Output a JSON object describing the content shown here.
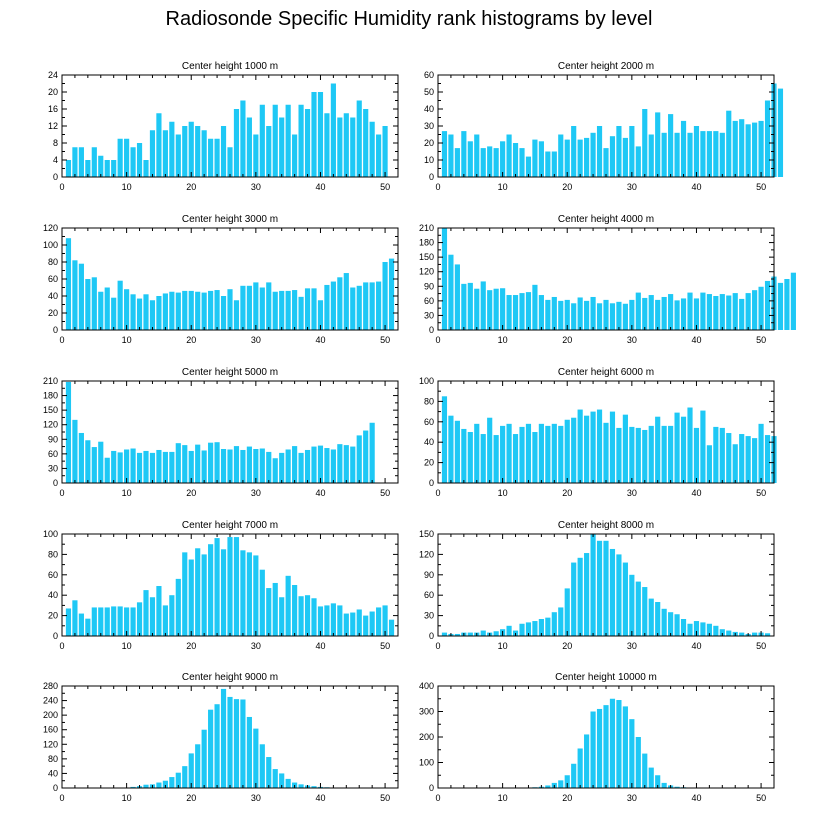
{
  "figure": {
    "title": "Radiosonde Specific Humidity rank histograms by level",
    "bar_color": "#1ec8f5",
    "axis_color": "#000000"
  },
  "chart_data": [
    {
      "type": "bar",
      "title": "Center height 1000 m",
      "xlim": [
        0,
        52
      ],
      "ylim": [
        0,
        24
      ],
      "yticks": [
        0,
        4,
        8,
        12,
        16,
        20,
        24
      ],
      "xticks": [
        0,
        10,
        20,
        30,
        40,
        50
      ],
      "values": [
        4,
        7,
        7,
        4,
        7,
        5,
        4,
        4,
        9,
        9,
        7,
        8,
        4,
        11,
        15,
        11,
        13,
        10,
        12,
        13,
        12,
        11,
        9,
        9,
        12,
        7,
        16,
        18,
        14,
        10,
        17,
        12,
        17,
        14,
        17,
        10,
        17,
        16,
        20,
        20,
        15,
        22,
        14,
        15,
        14,
        18,
        16,
        13,
        10,
        12
      ]
    },
    {
      "type": "bar",
      "title": "Center height 2000 m",
      "xlim": [
        0,
        52
      ],
      "ylim": [
        0,
        60
      ],
      "yticks": [
        0,
        10,
        20,
        30,
        40,
        50,
        60
      ],
      "xticks": [
        0,
        10,
        20,
        30,
        40,
        50
      ],
      "values": [
        27,
        25,
        17,
        27,
        21,
        25,
        17,
        18,
        17,
        21,
        25,
        20,
        17,
        12,
        22,
        21,
        15,
        15,
        25,
        22,
        30,
        22,
        23,
        26,
        30,
        17,
        24,
        30,
        23,
        30,
        18,
        40,
        25,
        38,
        26,
        37,
        26,
        33,
        26,
        30,
        27,
        27,
        27,
        26,
        39,
        33,
        34,
        31,
        32,
        33,
        45,
        55,
        52
      ]
    },
    {
      "type": "bar",
      "title": "Center height 3000 m",
      "xlim": [
        0,
        52
      ],
      "ylim": [
        0,
        120
      ],
      "yticks": [
        0,
        20,
        40,
        60,
        80,
        100,
        120
      ],
      "xticks": [
        0,
        10,
        20,
        30,
        40,
        50
      ],
      "values": [
        108,
        82,
        78,
        60,
        62,
        45,
        50,
        38,
        58,
        48,
        42,
        37,
        42,
        35,
        40,
        43,
        45,
        44,
        46,
        46,
        45,
        44,
        46,
        47,
        40,
        48,
        35,
        52,
        52,
        56,
        50,
        56,
        45,
        46,
        46,
        47,
        39,
        49,
        49,
        35,
        53,
        57,
        62,
        67,
        50,
        52,
        56,
        56,
        57,
        80,
        84
      ]
    },
    {
      "type": "bar",
      "title": "Center height 4000 m",
      "xlim": [
        0,
        52
      ],
      "ylim": [
        0,
        210
      ],
      "yticks": [
        0,
        30,
        60,
        90,
        120,
        150,
        180,
        210
      ],
      "xticks": [
        0,
        10,
        20,
        30,
        40,
        50
      ],
      "values": [
        210,
        155,
        135,
        95,
        97,
        85,
        100,
        82,
        85,
        86,
        72,
        72,
        76,
        78,
        93,
        72,
        62,
        68,
        60,
        62,
        55,
        67,
        60,
        68,
        55,
        62,
        55,
        58,
        54,
        62,
        77,
        66,
        72,
        62,
        68,
        74,
        61,
        65,
        77,
        65,
        77,
        74,
        70,
        74,
        71,
        76,
        64,
        76,
        82,
        89,
        101,
        110,
        97,
        105,
        118
      ]
    },
    {
      "type": "bar",
      "title": "Center height 5000 m",
      "xlim": [
        0,
        52
      ],
      "ylim": [
        0,
        210
      ],
      "yticks": [
        0,
        30,
        60,
        90,
        120,
        150,
        180,
        210
      ],
      "xticks": [
        0,
        10,
        20,
        30,
        40,
        50
      ],
      "values": [
        208,
        130,
        103,
        88,
        74,
        85,
        52,
        66,
        63,
        69,
        71,
        62,
        66,
        62,
        68,
        64,
        64,
        82,
        78,
        66,
        79,
        67,
        83,
        84,
        70,
        69,
        76,
        68,
        75,
        70,
        71,
        64,
        51,
        62,
        69,
        76,
        62,
        68,
        75,
        77,
        72,
        69,
        80,
        78,
        75,
        98,
        108,
        124
      ]
    },
    {
      "type": "bar",
      "title": "Center height 6000 m",
      "xlim": [
        0,
        52
      ],
      "ylim": [
        0,
        100
      ],
      "yticks": [
        0,
        20,
        40,
        60,
        80,
        100
      ],
      "xticks": [
        0,
        10,
        20,
        30,
        40,
        50
      ],
      "values": [
        85,
        66,
        61,
        53,
        50,
        58,
        48,
        64,
        47,
        56,
        58,
        48,
        55,
        58,
        50,
        58,
        56,
        58,
        56,
        62,
        64,
        72,
        66,
        70,
        72,
        59,
        70,
        54,
        67,
        55,
        54,
        52,
        56,
        65,
        56,
        56,
        69,
        65,
        74,
        54,
        71,
        37,
        55,
        54,
        49,
        38,
        48,
        46,
        44,
        58,
        47,
        46
      ]
    },
    {
      "type": "bar",
      "title": "Center height 7000 m",
      "xlim": [
        0,
        52
      ],
      "ylim": [
        0,
        100
      ],
      "yticks": [
        0,
        20,
        40,
        60,
        80,
        100
      ],
      "xticks": [
        0,
        10,
        20,
        30,
        40,
        50
      ],
      "values": [
        27,
        35,
        22,
        17,
        28,
        28,
        28,
        29,
        29,
        28,
        28,
        33,
        45,
        38,
        49,
        30,
        40,
        56,
        82,
        75,
        86,
        80,
        90,
        96,
        85,
        97,
        97,
        84,
        82,
        79,
        65,
        47,
        52,
        38,
        59,
        50,
        39,
        40,
        37,
        29,
        30,
        32,
        30,
        22,
        23,
        26,
        20,
        24,
        28,
        30,
        16
      ]
    },
    {
      "type": "bar",
      "title": "Center height 8000 m",
      "xlim": [
        0,
        52
      ],
      "ylim": [
        0,
        150
      ],
      "yticks": [
        0,
        30,
        60,
        90,
        120,
        150
      ],
      "xticks": [
        0,
        10,
        20,
        30,
        40,
        50
      ],
      "values": [
        5,
        3,
        3,
        5,
        5,
        5,
        8,
        5,
        7,
        10,
        15,
        8,
        18,
        20,
        22,
        25,
        27,
        35,
        42,
        70,
        108,
        115,
        122,
        150,
        140,
        140,
        128,
        120,
        108,
        90,
        80,
        72,
        55,
        50,
        40,
        35,
        32,
        25,
        18,
        22,
        20,
        18,
        15,
        10,
        8,
        6,
        5,
        3,
        5,
        5,
        4
      ]
    },
    {
      "type": "bar",
      "title": "Center height 9000 m",
      "xlim": [
        0,
        52
      ],
      "ylim": [
        0,
        280
      ],
      "yticks": [
        0,
        40,
        80,
        120,
        160,
        200,
        240,
        280
      ],
      "xticks": [
        0,
        10,
        20,
        30,
        40,
        50
      ],
      "values": [
        0,
        0,
        0,
        0,
        0,
        0,
        0,
        0,
        1,
        1,
        3,
        5,
        9,
        10,
        15,
        20,
        30,
        42,
        60,
        95,
        120,
        160,
        215,
        230,
        272,
        250,
        244,
        243,
        195,
        163,
        120,
        85,
        52,
        40,
        25,
        15,
        10,
        7,
        5,
        3,
        2,
        1,
        1,
        0,
        0,
        0,
        0,
        0,
        0,
        0,
        0
      ]
    },
    {
      "type": "bar",
      "title": "Center height 10000 m",
      "xlim": [
        0,
        52
      ],
      "ylim": [
        0,
        400
      ],
      "yticks": [
        0,
        100,
        200,
        300,
        400
      ],
      "xticks": [
        0,
        10,
        20,
        30,
        40,
        50
      ],
      "values": [
        0,
        0,
        0,
        0,
        0,
        0,
        0,
        0,
        0,
        0,
        0,
        0,
        1,
        1,
        3,
        5,
        10,
        20,
        30,
        50,
        95,
        155,
        210,
        300,
        310,
        325,
        350,
        345,
        320,
        270,
        200,
        135,
        80,
        50,
        20,
        10,
        5,
        3,
        1,
        1,
        0,
        0,
        0,
        0,
        0,
        0,
        0,
        0,
        0,
        0,
        0,
        0
      ]
    }
  ]
}
